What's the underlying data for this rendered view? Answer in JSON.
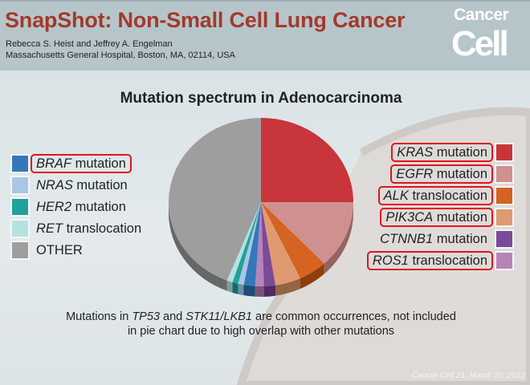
{
  "header": {
    "title": "SnapShot: Non-Small Cell Lung Cancer",
    "authors": "Rebecca S. Heist and Jeffrey A. Engelman",
    "affiliation": "Massachusetts General Hospital, Boston, MA, 02114, USA",
    "logo_line1": "Cancer",
    "logo_line2": "Cell"
  },
  "chart_data": {
    "type": "pie",
    "title": "Mutation spectrum in Adenocarcinoma",
    "unit": "percent (estimated)",
    "slices": [
      {
        "gene": "KRAS",
        "suffix": " mutation",
        "value": 25,
        "color": "#c8353a",
        "side": "#8e2326",
        "boxed": true,
        "legend": "right"
      },
      {
        "gene": "EGFR",
        "suffix": " mutation",
        "value": 13,
        "color": "#cf9090",
        "side": "#946363",
        "boxed": true,
        "legend": "right"
      },
      {
        "gene": "ALK",
        "suffix": " translocation",
        "value": 5,
        "color": "#d56322",
        "side": "#8f3d0a",
        "boxed": true,
        "legend": "right"
      },
      {
        "gene": "PIK3CA",
        "suffix": " mutation",
        "value": 4.5,
        "color": "#e09a6f",
        "side": "#946444",
        "boxed": true,
        "legend": "right"
      },
      {
        "gene": "CTNNB1",
        "suffix": " mutation",
        "value": 2,
        "color": "#7b4a98",
        "side": "#4f2a63",
        "boxed": false,
        "legend": "right"
      },
      {
        "gene": "ROS1",
        "suffix": " translocation",
        "value": 1.5,
        "color": "#b784b9",
        "side": "#7a5279",
        "boxed": true,
        "legend": "right"
      },
      {
        "gene": "BRAF",
        "suffix": " mutation",
        "value": 2,
        "color": "#3478b9",
        "side": "#1f4a74",
        "boxed": true,
        "legend": "left"
      },
      {
        "gene": "NRAS",
        "suffix": " mutation",
        "value": 1,
        "color": "#a9c6e6",
        "side": "#6f8aa6",
        "boxed": false,
        "legend": "left"
      },
      {
        "gene": "HER2",
        "suffix": " mutation",
        "value": 1,
        "color": "#1fa39a",
        "side": "#0e6d66",
        "boxed": false,
        "legend": "left"
      },
      {
        "gene": "RET",
        "suffix": " translocation",
        "value": 1,
        "color": "#b5e1e0",
        "side": "#7a9e9d",
        "boxed": false,
        "legend": "left"
      },
      {
        "gene": "",
        "suffix": "OTHER",
        "value": 44,
        "color": "#9e9e9e",
        "side": "#666866",
        "boxed": false,
        "legend": "left"
      }
    ]
  },
  "note": {
    "p1": "Mutations in ",
    "g1": "TP53",
    "p2": " and ",
    "g2": "STK11/LKB1",
    "p3": " are common occurrences, not included",
    "line2": "in pie chart due to high overlap with other mutations"
  },
  "citation": "Cancer Cell 21, March 20, 2012"
}
